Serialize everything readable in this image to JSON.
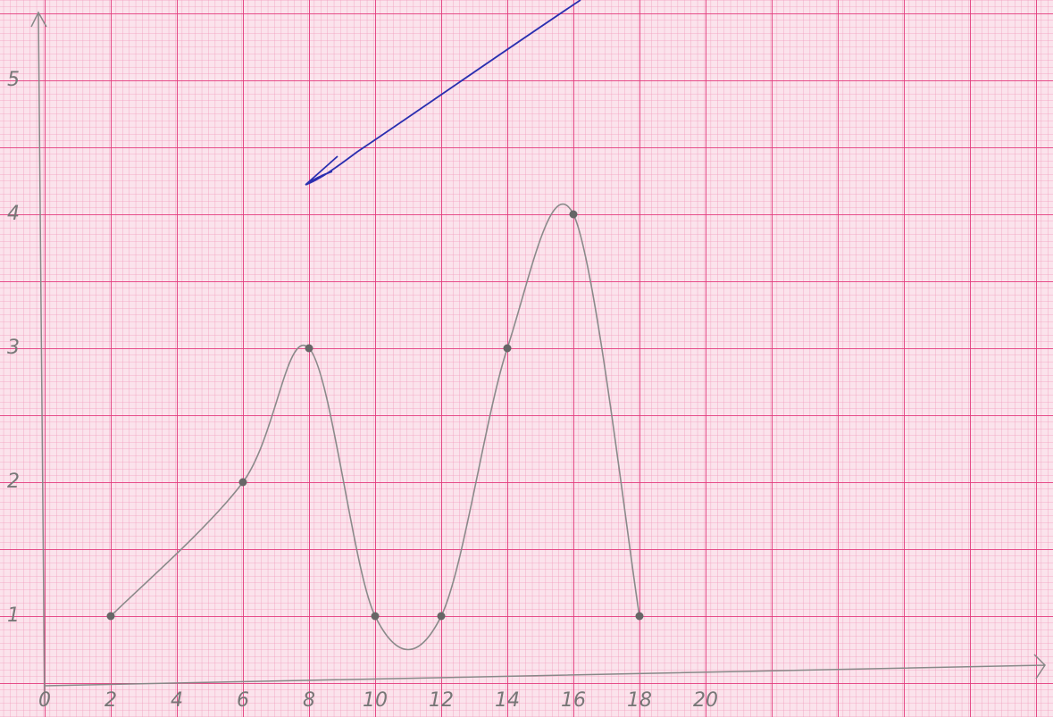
{
  "chart_data": {
    "type": "line",
    "x": [
      2,
      6,
      8,
      10,
      12,
      14,
      16,
      18
    ],
    "values": [
      1,
      2,
      3,
      1,
      1,
      3,
      4,
      1
    ],
    "color": "#8a8a8a",
    "xlim": [
      0,
      30
    ],
    "xticks": [
      0,
      2,
      4,
      6,
      8,
      10,
      12,
      14,
      16,
      18,
      20
    ],
    "ylim": [
      0.5,
      5.5
    ],
    "yticks": [
      1,
      2,
      3,
      4,
      5
    ]
  }
}
